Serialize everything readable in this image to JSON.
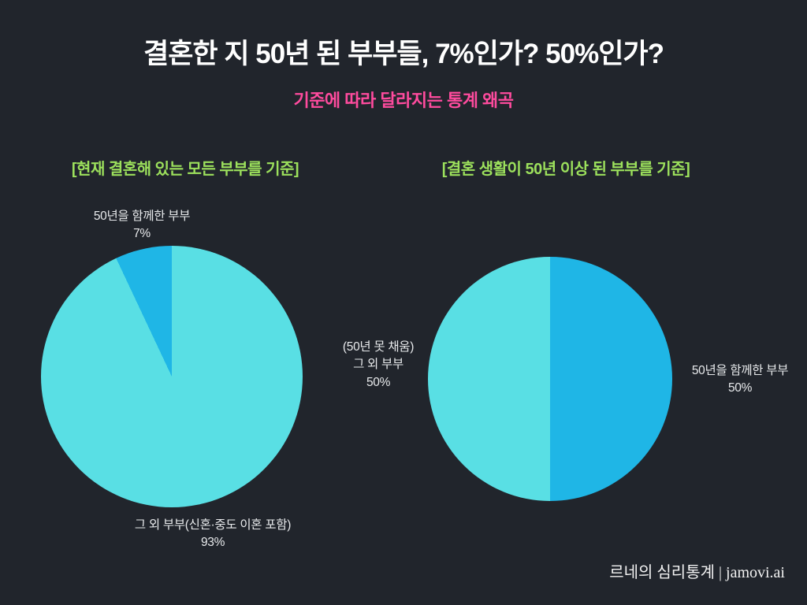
{
  "page": {
    "title": "결혼한 지 50년 된 부부들, 7%인가? 50%인가?",
    "subtitle": "기준에 따라 달라지는 통계 왜곡",
    "footer": "르네의 심리통계 | jamovi.ai"
  },
  "colors": {
    "background": "#21252c",
    "title_text": "#ffffff",
    "subtitle_text": "#ff4b9e",
    "chart_heading_text": "#9ce05c",
    "label_text": "#e8eaec",
    "slice_dark_cyan": "#1fb6e6",
    "slice_light_cyan": "#59dfe4"
  },
  "chart_data": [
    {
      "type": "pie",
      "title": "[현재 결혼해 있는 모든 부부를 기준]",
      "start_angle_deg": -25.2,
      "legend_position": "none",
      "slices": [
        {
          "label": "50년을 함께한 부부",
          "value": 7,
          "pct": "7%",
          "color": "#1fb6e6"
        },
        {
          "label": "그 외 부부(신혼·중도 이혼 포함)",
          "value": 93,
          "pct": "93%",
          "color": "#59dfe4"
        }
      ]
    },
    {
      "type": "pie",
      "title": "[결혼 생활이 50년 이상 된 부부를 기준]",
      "start_angle_deg": 0,
      "legend_position": "none",
      "slices": [
        {
          "label": "50년을 함께한 부부",
          "value": 50,
          "pct": "50%",
          "color": "#1fb6e6"
        },
        {
          "label": "(50년 못 채움) 그 외 부부",
          "label_line1": "(50년 못 채움)",
          "label_line2": "그 외 부부",
          "value": 50,
          "pct": "50%",
          "color": "#59dfe4"
        }
      ]
    }
  ]
}
